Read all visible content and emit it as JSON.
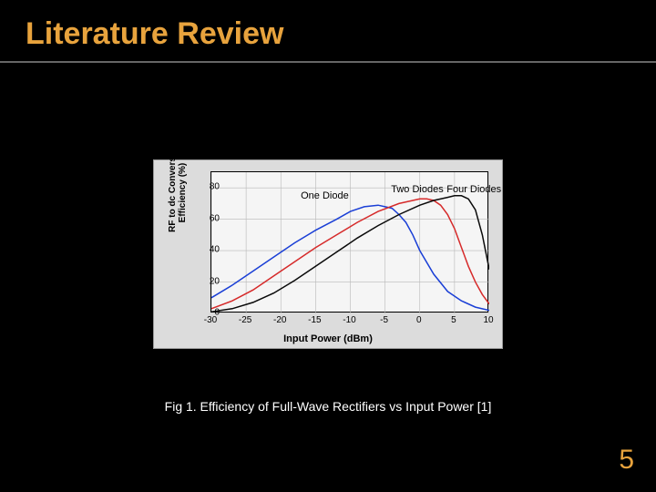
{
  "slide": {
    "title": "Literature Review",
    "title_color": "#e8a33d",
    "title_fontsize": 34,
    "background": "#000000",
    "divider_color": "#666666",
    "caption": "Fig 1. Efficiency of Full-Wave Rectifiers vs Input Power [1]",
    "caption_color": "#ffffff",
    "page_number": "5",
    "page_number_color": "#e8a33d"
  },
  "chart": {
    "type": "line",
    "background": "#dcdcdc",
    "plot_background": "#f5f5f5",
    "border_color": "#000000",
    "grid_color": "#b8b8b8",
    "xlabel": "Input Power (dBm)",
    "ylabel_line1": "RF to dc Conversion",
    "ylabel_line2": "Efficiency (%)",
    "label_fontsize": 11,
    "tick_fontsize": 10,
    "xlim": [
      -30,
      10
    ],
    "ylim": [
      0,
      90
    ],
    "xticks": [
      -30,
      -25,
      -20,
      -15,
      -10,
      -5,
      0,
      5,
      10
    ],
    "yticks": [
      0,
      20,
      40,
      60,
      80
    ],
    "series": [
      {
        "name": "One Diode",
        "color": "#1a3fd6",
        "line_width": 1.5,
        "label_x": -17,
        "label_y": 78,
        "data": [
          [
            -30,
            10
          ],
          [
            -27,
            18
          ],
          [
            -24,
            27
          ],
          [
            -21,
            36
          ],
          [
            -18,
            45
          ],
          [
            -15,
            53
          ],
          [
            -12,
            60
          ],
          [
            -10,
            65
          ],
          [
            -8,
            68
          ],
          [
            -6,
            69
          ],
          [
            -5,
            68
          ],
          [
            -4,
            67
          ],
          [
            -3,
            63
          ],
          [
            -2,
            58
          ],
          [
            -1,
            50
          ],
          [
            0,
            40
          ],
          [
            2,
            25
          ],
          [
            4,
            14
          ],
          [
            6,
            8
          ],
          [
            8,
            4
          ],
          [
            10,
            2
          ]
        ]
      },
      {
        "name": "Two Diodes",
        "color": "#d62a2a",
        "line_width": 1.5,
        "label_x": -4,
        "label_y": 82,
        "data": [
          [
            -30,
            3
          ],
          [
            -27,
            8
          ],
          [
            -24,
            15
          ],
          [
            -21,
            24
          ],
          [
            -18,
            33
          ],
          [
            -15,
            42
          ],
          [
            -12,
            50
          ],
          [
            -9,
            58
          ],
          [
            -6,
            65
          ],
          [
            -3,
            70
          ],
          [
            -1,
            72
          ],
          [
            0,
            73
          ],
          [
            1,
            73
          ],
          [
            2,
            72
          ],
          [
            3,
            69
          ],
          [
            4,
            63
          ],
          [
            5,
            54
          ],
          [
            6,
            42
          ],
          [
            7,
            30
          ],
          [
            8,
            20
          ],
          [
            9,
            12
          ],
          [
            10,
            6
          ]
        ]
      },
      {
        "name": "Four Diodes",
        "color": "#0a0a0a",
        "line_width": 1.5,
        "label_x": 4,
        "label_y": 82,
        "data": [
          [
            -30,
            1
          ],
          [
            -27,
            3
          ],
          [
            -24,
            7
          ],
          [
            -21,
            13
          ],
          [
            -18,
            21
          ],
          [
            -15,
            30
          ],
          [
            -12,
            39
          ],
          [
            -9,
            48
          ],
          [
            -6,
            56
          ],
          [
            -3,
            63
          ],
          [
            0,
            69
          ],
          [
            2,
            72
          ],
          [
            4,
            74
          ],
          [
            5,
            75
          ],
          [
            6,
            75
          ],
          [
            7,
            73
          ],
          [
            8,
            66
          ],
          [
            9,
            50
          ],
          [
            10,
            28
          ]
        ]
      }
    ]
  }
}
